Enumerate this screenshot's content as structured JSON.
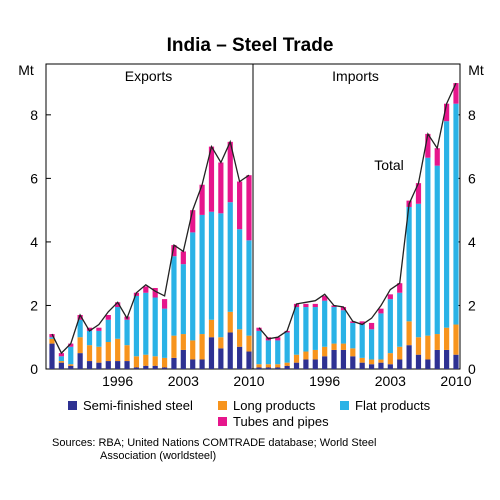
{
  "title": "India – Steel Trade",
  "unit_left": "Mt",
  "unit_right": "Mt",
  "sources_line1": "Sources: RBA; United Nations COMTRADE database; World Steel",
  "sources_line2": "Association (worldsteel)",
  "colors": {
    "semi": "#2e3192",
    "long": "#f7941d",
    "flat": "#2ab2e6",
    "tubes": "#e6168c",
    "total": "#222222"
  },
  "chart_data": {
    "type": "bar",
    "stacked": true,
    "ylim": [
      0,
      9.6
    ],
    "yticks": [
      0,
      2,
      4,
      6,
      8
    ],
    "grid": false,
    "legend_position": "bottom",
    "series_order": [
      "semi",
      "long",
      "flat",
      "tubes"
    ],
    "legend": [
      {
        "key": "semi",
        "label": "Semi-finished steel"
      },
      {
        "key": "long",
        "label": "Long products"
      },
      {
        "key": "flat",
        "label": "Flat products"
      },
      {
        "key": "tubes",
        "label": "Tubes and pipes"
      }
    ],
    "line_label": "Total",
    "panels": [
      {
        "name": "Exports",
        "x_start": 1989,
        "xticks": [
          "1996",
          "2003",
          "2010"
        ],
        "semi": [
          0.8,
          0.2,
          0.1,
          0.5,
          0.25,
          0.2,
          0.25,
          0.25,
          0.25,
          0.05,
          0.1,
          0.1,
          0.05,
          0.35,
          0.6,
          0.3,
          0.3,
          1.0,
          0.65,
          1.15,
          0.7,
          0.55
        ],
        "long": [
          0.15,
          0.05,
          0.05,
          0.5,
          0.5,
          0.5,
          0.6,
          0.7,
          0.5,
          0.35,
          0.35,
          0.3,
          0.3,
          0.7,
          0.5,
          0.6,
          0.8,
          0.55,
          0.35,
          0.65,
          0.55,
          0.5
        ],
        "flat": [
          0.05,
          0.15,
          0.55,
          0.55,
          0.45,
          0.5,
          0.7,
          1.0,
          0.8,
          1.9,
          1.95,
          1.85,
          1.55,
          2.5,
          2.2,
          3.4,
          3.75,
          3.4,
          3.9,
          3.45,
          3.15,
          3.0
        ],
        "tubes": [
          0.1,
          0.1,
          0.1,
          0.15,
          0.1,
          0.1,
          0.15,
          0.15,
          0.1,
          0.1,
          0.2,
          0.3,
          0.3,
          0.35,
          0.4,
          0.7,
          0.95,
          2.05,
          1.6,
          1.9,
          1.5,
          2.05
        ],
        "total": [
          1.1,
          0.5,
          0.8,
          1.7,
          1.2,
          1.4,
          1.8,
          2.1,
          1.6,
          2.4,
          2.65,
          2.45,
          2.3,
          3.9,
          3.7,
          5.0,
          5.8,
          7.0,
          6.5,
          7.15,
          5.9,
          6.1
        ]
      },
      {
        "name": "Imports",
        "x_start": 1989,
        "xticks": [
          "1996",
          "2003",
          "2010"
        ],
        "semi": [
          0.05,
          0.05,
          0.05,
          0.1,
          0.2,
          0.3,
          0.3,
          0.4,
          0.6,
          0.6,
          0.4,
          0.2,
          0.15,
          0.2,
          0.15,
          0.3,
          0.75,
          0.45,
          0.3,
          0.6,
          0.6,
          0.45
        ],
        "long": [
          0.1,
          0.1,
          0.1,
          0.1,
          0.25,
          0.25,
          0.3,
          0.3,
          0.2,
          0.2,
          0.25,
          0.15,
          0.15,
          0.1,
          0.35,
          0.4,
          0.75,
          0.55,
          0.75,
          0.5,
          0.7,
          0.95
        ],
        "flat": [
          1.05,
          0.75,
          0.75,
          0.95,
          1.5,
          1.4,
          1.35,
          1.45,
          1.15,
          1.05,
          0.8,
          1.05,
          0.95,
          1.45,
          1.7,
          1.7,
          3.6,
          4.2,
          5.6,
          5.3,
          6.5,
          6.95
        ],
        "tubes": [
          0.1,
          0.1,
          0.1,
          0.05,
          0.1,
          0.1,
          0.1,
          0.15,
          0.05,
          0.1,
          0.05,
          0.1,
          0.2,
          0.15,
          0.15,
          0.3,
          0.2,
          0.65,
          0.75,
          0.55,
          0.55,
          0.65
        ],
        "total": [
          1.3,
          0.95,
          1.0,
          1.2,
          2.05,
          2.1,
          2.15,
          2.35,
          2.0,
          1.95,
          1.5,
          1.4,
          1.6,
          2.0,
          2.5,
          2.7,
          5.2,
          5.85,
          7.4,
          6.95,
          8.35,
          9.0
        ]
      }
    ]
  }
}
